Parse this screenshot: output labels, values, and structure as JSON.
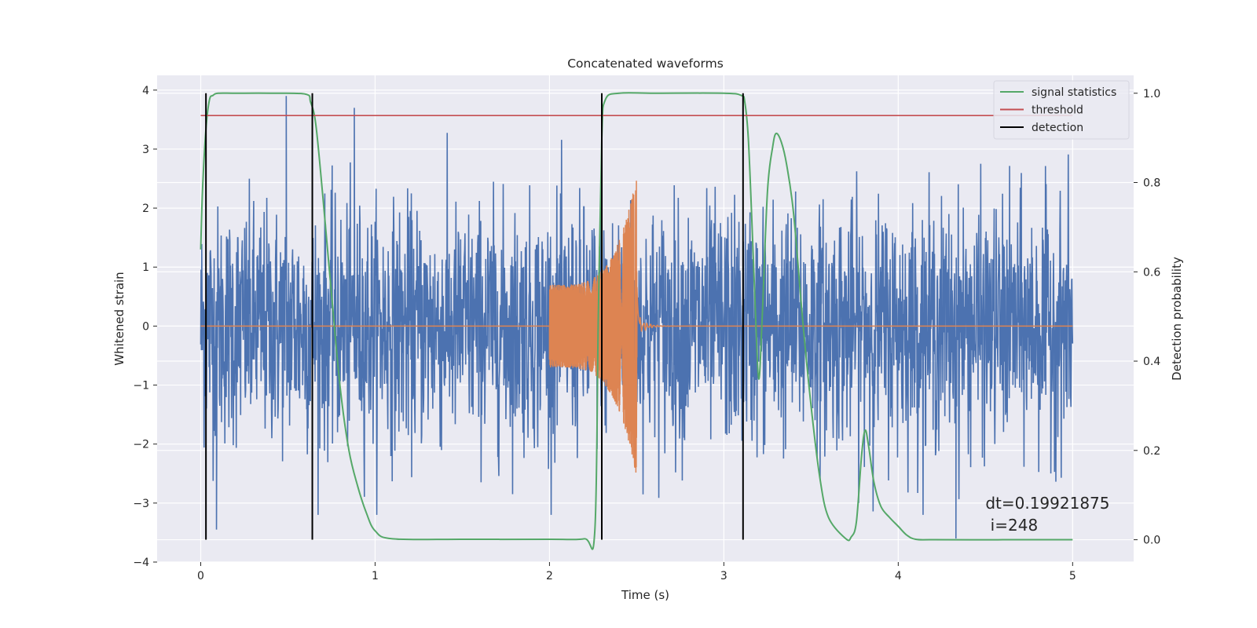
{
  "chart_data": {
    "type": "line",
    "title": "Concatenated waveforms",
    "xlabel": "Time (s)",
    "ylabel": "Whitened strain",
    "y2label": "Detection probability",
    "xlim": [
      -0.25,
      5.35
    ],
    "ylim": [
      -4,
      4.25
    ],
    "y2lim": [
      -0.05,
      1.04
    ],
    "x_ticks": [
      0,
      1,
      2,
      3,
      4,
      5
    ],
    "y_ticks": [
      -4,
      -3,
      -2,
      -1,
      0,
      1,
      2,
      3,
      4
    ],
    "y2_ticks": [
      0.0,
      0.2,
      0.4,
      0.6,
      0.8,
      1.0
    ],
    "x_tick_labels": [
      "0",
      "1",
      "2",
      "3",
      "4",
      "5"
    ],
    "y_tick_labels": [
      "−4",
      "−3",
      "−2",
      "−1",
      "0",
      "1",
      "2",
      "3",
      "4"
    ],
    "y2_tick_labels": [
      "0.0",
      "0.2",
      "0.4",
      "0.6",
      "0.8",
      "1.0"
    ],
    "grid": true,
    "legend_position": "top-right",
    "legend": [
      {
        "label": "signal statistics",
        "color": "#55a868"
      },
      {
        "label": "threshold",
        "color": "#c44e52"
      },
      {
        "label": "detection",
        "color": "#000000"
      }
    ],
    "series": [
      {
        "kind": "noise",
        "color": "#4c72b0",
        "x_range": [
          0,
          5
        ],
        "envelope_amplitude": 1.0,
        "peak_extremes": [
          [
            0.49,
            3.9
          ],
          [
            0.88,
            3.7
          ],
          [
            4.33,
            -3.6
          ],
          [
            0.09,
            -3.45
          ]
        ]
      },
      {
        "kind": "chirp",
        "color": "#dd8452",
        "x_range": [
          2.0,
          2.52
        ],
        "start_amplitude": 0.7,
        "peak_time": 2.5,
        "peak_amplitude": 2.55,
        "baseline": 0
      },
      {
        "name": "signal statistics",
        "color": "#55a868",
        "axis": "right",
        "x": [
          0,
          0.01,
          0.03,
          0.05,
          0.07,
          0.1,
          0.2,
          0.4,
          0.6,
          0.63,
          0.66,
          0.7,
          0.75,
          0.8,
          0.85,
          0.9,
          0.95,
          1.0,
          1.1,
          1.5,
          2.0,
          2.2,
          2.26,
          2.28,
          2.3,
          2.32,
          2.4,
          2.6,
          3.0,
          3.1,
          3.12,
          3.14,
          3.16,
          3.18,
          3.2,
          3.22,
          3.25,
          3.28,
          3.3,
          3.33,
          3.36,
          3.4,
          3.45,
          3.5,
          3.55,
          3.6,
          3.7,
          3.73,
          3.76,
          3.79,
          3.81,
          3.83,
          3.86,
          3.9,
          3.95,
          4.0,
          4.05,
          4.1,
          4.2,
          4.6,
          4.8,
          5.0
        ],
        "y": [
          0.65,
          0.78,
          0.92,
          0.985,
          0.995,
          1.0,
          1.0,
          1.0,
          0.998,
          0.98,
          0.93,
          0.77,
          0.55,
          0.34,
          0.2,
          0.12,
          0.06,
          0.02,
          0.002,
          0.001,
          0.001,
          0.002,
          0.02,
          0.5,
          0.9,
          0.985,
          1.0,
          1.0,
          1.0,
          0.995,
          0.98,
          0.9,
          0.72,
          0.52,
          0.36,
          0.5,
          0.78,
          0.88,
          0.91,
          0.89,
          0.84,
          0.73,
          0.5,
          0.3,
          0.14,
          0.05,
          0.002,
          0.006,
          0.04,
          0.19,
          0.245,
          0.21,
          0.13,
          0.075,
          0.05,
          0.03,
          0.01,
          0.001,
          0.0,
          0.0,
          0.0,
          0.0
        ]
      },
      {
        "name": "threshold",
        "color": "#c44e52",
        "axis": "right",
        "x": [
          0,
          5
        ],
        "y": [
          0.95,
          0.95
        ]
      }
    ],
    "detections": [
      0.03,
      0.64,
      2.3,
      3.11
    ],
    "detection_range": [
      0.0,
      1.0
    ],
    "annotation": {
      "lines": [
        "dt=0.19921875",
        " i=248"
      ],
      "x": 4.5,
      "y": -3.0
    }
  }
}
